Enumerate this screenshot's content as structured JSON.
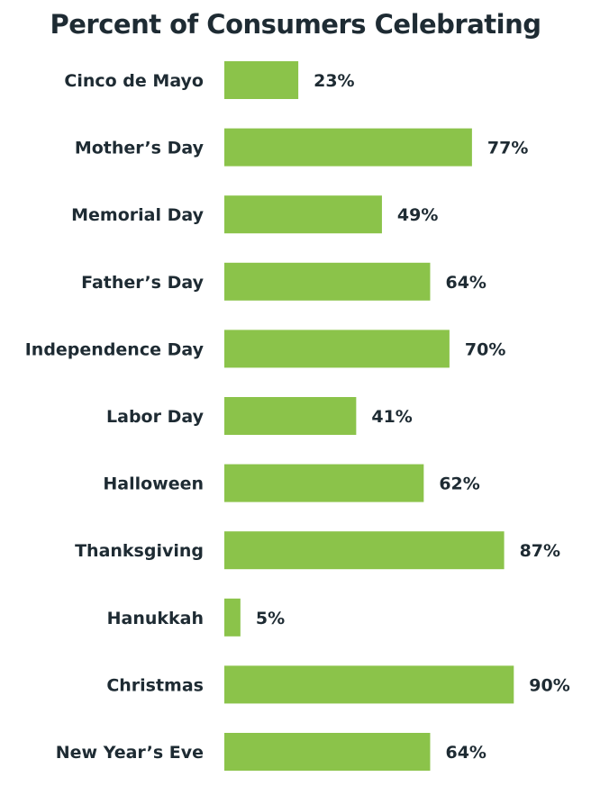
{
  "chart_data": {
    "type": "bar",
    "orientation": "horizontal",
    "title": "Percent of Consumers Celebrating",
    "categories": [
      "Cinco de Mayo",
      "Mother’s Day",
      "Memorial Day",
      "Father’s Day",
      "Independence Day",
      "Labor Day",
      "Halloween",
      "Thanksgiving",
      "Hanukkah",
      "Christmas",
      "New Year’s Eve"
    ],
    "values": [
      23,
      77,
      49,
      64,
      70,
      41,
      62,
      87,
      5,
      90,
      64
    ],
    "value_labels": [
      "23%",
      "77%",
      "49%",
      "64%",
      "70%",
      "41%",
      "62%",
      "87%",
      "5%",
      "90%",
      "64%"
    ],
    "xlim": [
      0,
      100
    ],
    "grid": false,
    "legend": "none",
    "bar_color": "#8bc34a",
    "text_color": "#1e2b33"
  }
}
